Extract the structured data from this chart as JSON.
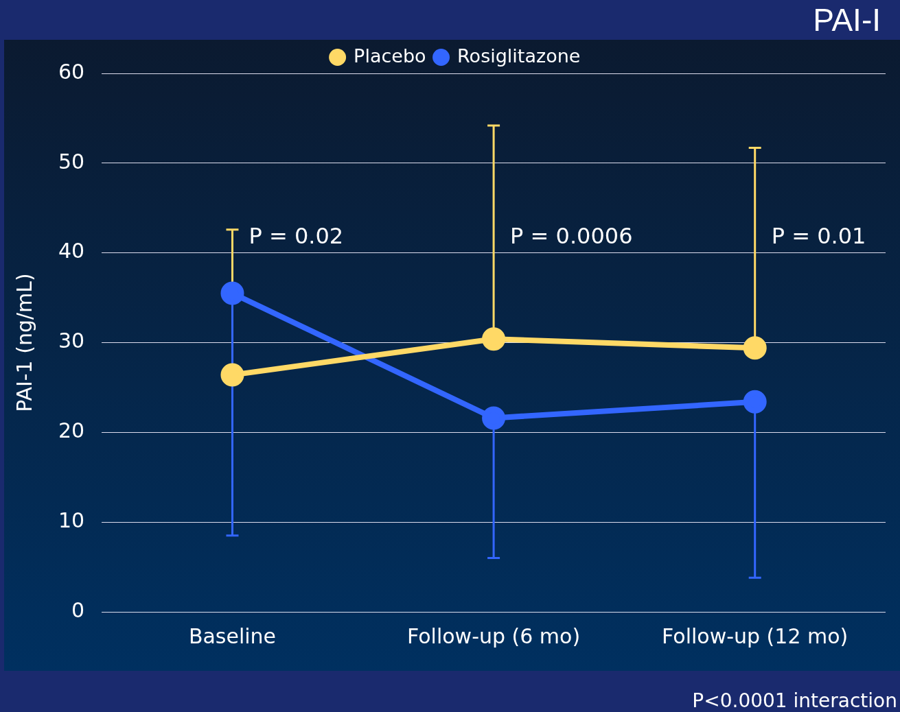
{
  "chart_data": {
    "type": "line",
    "title": "PAI-I",
    "ylabel": "PAI-1 (ng/mL)",
    "categories": [
      "Baseline",
      "Follow-up (6 mo)",
      "Follow-up (12 mo)"
    ],
    "series": [
      {
        "name": "Placebo",
        "color": "#ffd966",
        "values": [
          26.4,
          30.4,
          29.4
        ],
        "errors": [
          [
            26.4,
            42.6
          ],
          [
            30.4,
            54.2
          ],
          [
            29.4,
            51.7
          ]
        ]
      },
      {
        "name": "Rosiglitazone",
        "color": "#3366ff",
        "values": [
          35.5,
          21.6,
          23.4
        ],
        "errors": [
          [
            8.5,
            35.5
          ],
          [
            6.0,
            21.6
          ],
          [
            3.8,
            23.4
          ]
        ]
      }
    ],
    "ylim": [
      0,
      60
    ],
    "yticks": [
      0,
      10,
      20,
      30,
      40,
      50,
      60
    ],
    "grid": "y",
    "legend": "top",
    "marker": "circle",
    "line_style": "solid",
    "annotations": [
      {
        "text": "P = 0.02",
        "x": "Baseline",
        "y": 41.7
      },
      {
        "text": "P = 0.0006",
        "x": "Follow-up (6 mo)",
        "y": 41.7
      },
      {
        "text": "P = 0.01",
        "x": "Follow-up (12 mo)",
        "y": 41.7
      },
      "P<0.0001 interaction"
    ]
  }
}
